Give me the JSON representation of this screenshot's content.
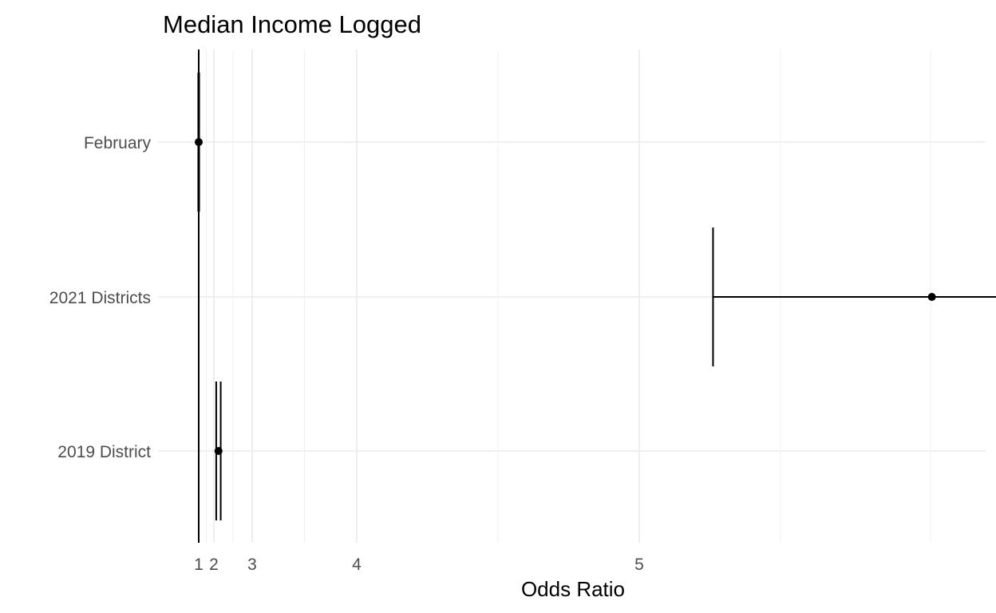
{
  "chart_data": {
    "type": "forest",
    "title": "Median Income Logged",
    "xlabel": "Odds Ratio",
    "ylabel": "",
    "x_scale": "log",
    "x_ticks": [
      1,
      2,
      3,
      4,
      5
    ],
    "x_tick_labels": [
      "1",
      "2",
      "3",
      "4",
      "5"
    ],
    "reference_line": 1,
    "grid": true,
    "legend": "none",
    "categories": [
      "February",
      "2021 Districts",
      "2019 District"
    ],
    "estimates": [
      {
        "label": "February",
        "estimate": 1.0,
        "lower": 0.98,
        "upper": 1.02
      },
      {
        "label": "2021 Districts",
        "estimate": 6.3,
        "lower": 5.3,
        "upper": 7.6
      },
      {
        "label": "2019 District",
        "estimate": 2.1,
        "lower": 2.05,
        "upper": 2.15
      }
    ]
  }
}
